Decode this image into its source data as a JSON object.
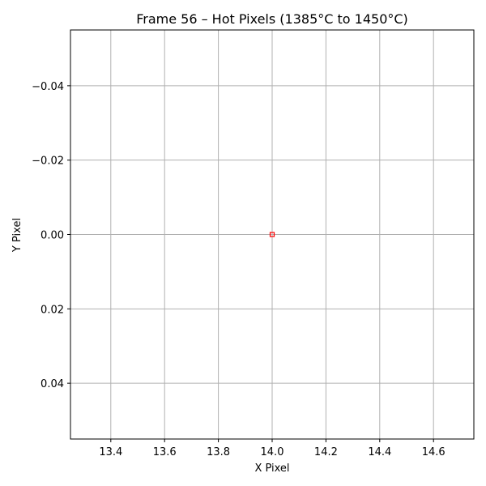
{
  "chart_data": {
    "type": "scatter",
    "title": "Frame 56 – Hot Pixels (1385°C to 1450°C)",
    "xlabel": "X Pixel",
    "ylabel": "Y Pixel",
    "xlim": [
      13.25,
      14.75
    ],
    "ylim": [
      0.055,
      -0.055
    ],
    "y_inverted": true,
    "x_ticks": [
      13.4,
      13.6,
      13.8,
      14.0,
      14.2,
      14.4,
      14.6
    ],
    "x_tick_labels": [
      "13.4",
      "13.6",
      "13.8",
      "14.0",
      "14.2",
      "14.4",
      "14.6"
    ],
    "y_ticks": [
      -0.04,
      -0.02,
      0.0,
      0.02,
      0.04
    ],
    "y_tick_labels": [
      "−0.04",
      "−0.02",
      "0.00",
      "0.02",
      "0.04"
    ],
    "grid": true,
    "series": [
      {
        "points": [
          {
            "x": 14.0,
            "y": 0.0
          }
        ],
        "marker": "open-square",
        "color": "#ff0000"
      }
    ],
    "colors": {
      "grid": "#b0b0b0",
      "axis": "#000000"
    }
  }
}
